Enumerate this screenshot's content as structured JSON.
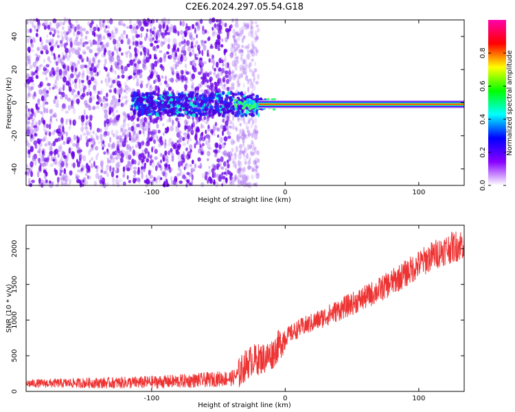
{
  "figure_title": "C2E6.2024.297.05.54.G18",
  "chart_data": [
    {
      "type": "heatmap",
      "xlabel": "Height of straight line (km)",
      "ylabel": "Frequency (Hz)",
      "xlim": [
        -194,
        134
      ],
      "ylim": [
        -50,
        50
      ],
      "xticks": [
        -100,
        0,
        100
      ],
      "yticks": [
        -40,
        -20,
        0,
        20,
        40
      ],
      "colorbar": {
        "label": "Normalized spectral amplitude",
        "range": [
          0,
          1
        ],
        "ticks": [
          "0.0",
          "0.2",
          "0.4",
          "0.6",
          "0.8"
        ],
        "colormap": [
          "#ffffff",
          "#8800ff",
          "#0000ff",
          "#00ffff",
          "#00ff00",
          "#ffff00",
          "#ff0000",
          "#ff00aa"
        ]
      },
      "signal_line": {
        "frequency_hz": -1,
        "x_start_km": -20,
        "x_end_km": 134,
        "color": "#ff0000"
      },
      "noise_region_km": [
        -194,
        -20
      ],
      "bright_noise_band_km": [
        -110,
        -25
      ]
    },
    {
      "type": "line",
      "xlabel": "Height of straight line (km)",
      "ylabel": "SNR (10 * v/v)",
      "xlim": [
        -194,
        134
      ],
      "ylim": [
        0,
        2330
      ],
      "xticks": [
        -100,
        0,
        100
      ],
      "yticks": [
        0,
        500,
        1000,
        1500,
        2000
      ],
      "color": "#ee3333",
      "series": [
        {
          "x": [
            -194,
            -170,
            -150,
            -130,
            -110,
            -90,
            -70,
            -50,
            -40,
            -35,
            -30,
            -25,
            -20,
            -15,
            -10,
            -5,
            0,
            10,
            20,
            30,
            40,
            50,
            60,
            70,
            80,
            90,
            100,
            110,
            120,
            130,
            134
          ],
          "values": [
            110,
            115,
            118,
            120,
            125,
            135,
            150,
            175,
            185,
            240,
            360,
            440,
            450,
            470,
            520,
            640,
            760,
            880,
            960,
            1050,
            1140,
            1230,
            1320,
            1420,
            1530,
            1650,
            1780,
            1900,
            1990,
            2050,
            2070
          ]
        }
      ]
    }
  ]
}
